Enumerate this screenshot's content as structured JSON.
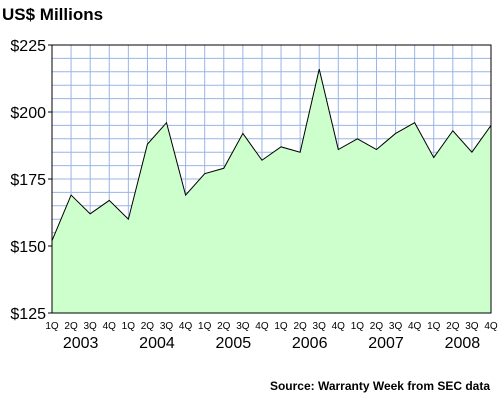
{
  "chart_data": {
    "type": "area",
    "title": "US$ Millions",
    "source": "Source: Warranty Week from SEC data",
    "ylim": [
      125,
      225
    ],
    "y_ticks": [
      125,
      150,
      175,
      200,
      225
    ],
    "y_tick_labels": [
      "$125",
      "$150",
      "$175",
      "$200",
      "$225"
    ],
    "x_tick_labels": [
      "1Q",
      "2Q",
      "3Q",
      "4Q",
      "1Q",
      "2Q",
      "3Q",
      "4Q",
      "1Q",
      "2Q",
      "3Q",
      "4Q",
      "1Q",
      "2Q",
      "3Q",
      "4Q",
      "1Q",
      "2Q",
      "3Q",
      "4Q",
      "1Q",
      "2Q",
      "3Q",
      "4Q"
    ],
    "years": [
      {
        "label": "2003",
        "start": 0
      },
      {
        "label": "2004",
        "start": 4
      },
      {
        "label": "2005",
        "start": 8
      },
      {
        "label": "2006",
        "start": 12
      },
      {
        "label": "2007",
        "start": 16
      },
      {
        "label": "2008",
        "start": 20
      }
    ],
    "grid": true,
    "fill_color": "#ccffcc",
    "line_color": "#000000",
    "grid_color": "#9ab4e6",
    "series": [
      {
        "values": [
          152,
          169,
          162,
          167,
          160,
          188,
          196,
          169,
          177,
          179,
          192,
          182,
          187,
          185,
          216,
          186,
          190,
          186,
          192,
          196,
          183,
          193,
          185,
          195
        ]
      }
    ]
  }
}
